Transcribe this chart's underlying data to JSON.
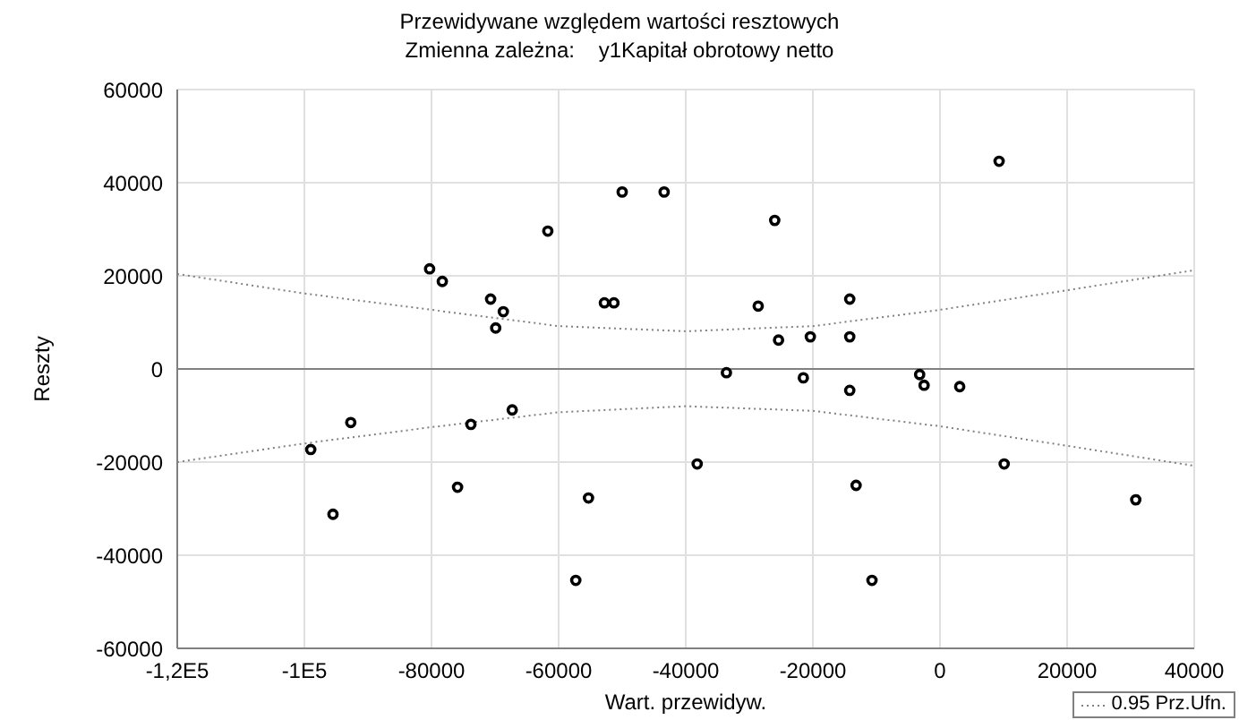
{
  "chart_data": {
    "type": "scatter",
    "title": "Przewidywane względem wartości resztowych",
    "subtitle": "Zmienna zależna:    y1Kapitał obrotowy netto",
    "xlabel": "Wart. przewidyw.",
    "ylabel": "Reszty",
    "xlim": [
      -120000,
      40000
    ],
    "xticks": [
      {
        "value": -120000,
        "label": "-1,2E5"
      },
      {
        "value": -100000,
        "label": "-1E5"
      },
      -80000,
      -60000,
      -40000,
      -20000,
      0,
      20000,
      40000
    ],
    "ylim": [
      -60000,
      60000
    ],
    "yticks": [
      -60000,
      -40000,
      -20000,
      0,
      20000,
      40000,
      60000
    ],
    "grid": true,
    "legend": "bottom right",
    "marker": "circle",
    "ref_lines": [
      {
        "axis": "y",
        "value": 0,
        "color": "#808080"
      }
    ],
    "series": [
      {
        "color": "#000000",
        "x": [
          -99000,
          -95500,
          -92700,
          -80300,
          -78300,
          -70700,
          -68700,
          -69900,
          -73800,
          -67300,
          -75900,
          -61700,
          -50000,
          -43400,
          -52800,
          -51300,
          -57300,
          -55300,
          -38200,
          -26000,
          -28600,
          -14200,
          -25400,
          -20400,
          -14200,
          -33600,
          -21500,
          -14200,
          -3200,
          -2500,
          3100,
          9300,
          -13200,
          -10700,
          10100,
          30800
        ],
        "values": [
          -17300,
          -31200,
          -11500,
          21500,
          18800,
          15000,
          12300,
          8800,
          -11900,
          -8800,
          -25400,
          29600,
          38000,
          38000,
          14200,
          14200,
          -45400,
          -27700,
          -20400,
          31900,
          13500,
          15000,
          6200,
          6900,
          6900,
          -800,
          -1900,
          -4600,
          -1200,
          -3500,
          -3800,
          44600,
          -25000,
          -45400,
          -20400,
          -28100
        ]
      },
      {
        "type": "line",
        "name": "0.95 Prz.Ufn.",
        "color": "#808080",
        "line_style": "dotted",
        "marker": "none",
        "x": [
          -120000,
          -100000,
          -80000,
          -60000,
          -40000,
          -20000,
          0,
          20000,
          40000
        ],
        "values": [
          20400,
          16200,
          12700,
          9200,
          8100,
          9200,
          12700,
          16900,
          21200
        ]
      },
      {
        "type": "line",
        "color": "#808080",
        "line_style": "dotted",
        "marker": "none",
        "x": [
          -120000,
          -100000,
          -80000,
          -60000,
          -40000,
          -20000,
          0,
          20000,
          40000
        ],
        "values": [
          -20000,
          -16000,
          -12500,
          -9300,
          -8000,
          -9000,
          -12300,
          -16500,
          -20800
        ]
      }
    ]
  }
}
